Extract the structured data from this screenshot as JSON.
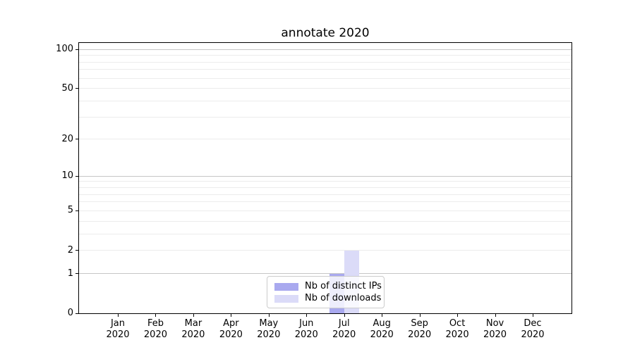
{
  "chart_data": {
    "type": "bar",
    "title": "annotate 2020",
    "categories": [
      "Jan",
      "Feb",
      "Mar",
      "Apr",
      "May",
      "Jun",
      "Jul",
      "Aug",
      "Sep",
      "Oct",
      "Nov",
      "Dec"
    ],
    "year_label": "2020",
    "series": [
      {
        "name": "Nb of distinct IPs",
        "color": "#a9a9ef",
        "values": [
          0,
          0,
          0,
          0,
          0,
          0,
          1,
          0,
          0,
          0,
          0,
          0
        ]
      },
      {
        "name": "Nb of downloads",
        "color": "#dbdbf8",
        "values": [
          0,
          0,
          0,
          0,
          0,
          0,
          2,
          0,
          0,
          0,
          0,
          0
        ]
      }
    ],
    "yscale": "log1p",
    "ylim": [
      0,
      112
    ],
    "yticks": [
      0,
      1,
      2,
      5,
      10,
      20,
      50,
      100
    ],
    "gridlines": {
      "major": [
        1,
        10,
        100
      ],
      "minor": [
        2,
        3,
        4,
        5,
        6,
        7,
        8,
        9,
        20,
        30,
        40,
        50,
        60,
        70,
        80,
        90
      ]
    },
    "grid": "horizontal",
    "legend_position": "lower center",
    "xlabel": "",
    "ylabel": "",
    "colors": {
      "grid_major": "#c6c6c6",
      "grid_minor": "#ececec",
      "spine": "#000000",
      "legend_border": "#cccccc",
      "background": "#ffffff"
    }
  }
}
